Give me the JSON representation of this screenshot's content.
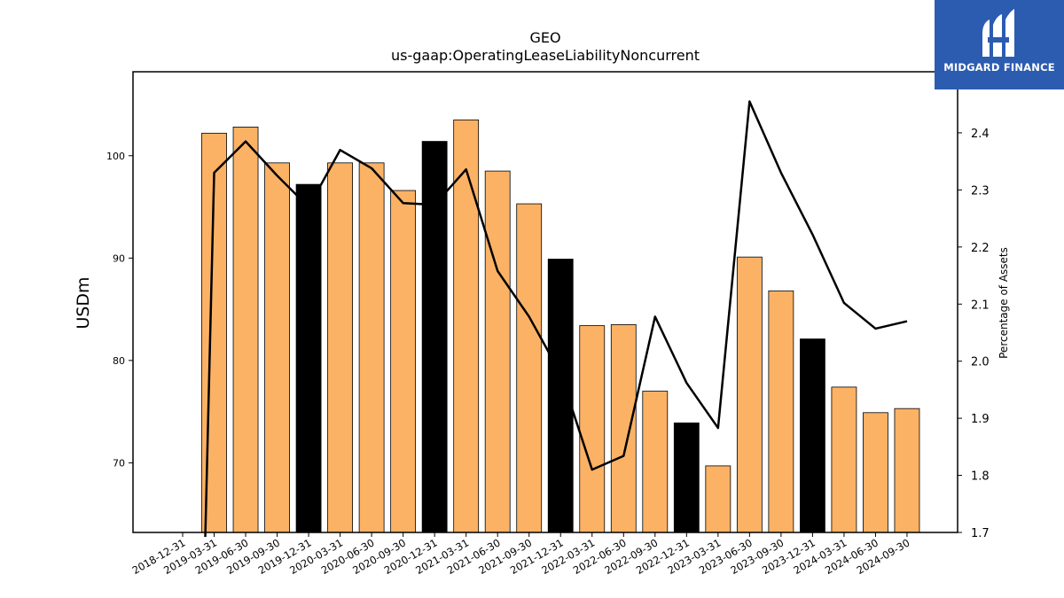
{
  "chart_data": {
    "type": "bar",
    "title": "GEO",
    "subtitle": "us-gaap:OperatingLeaseLiabilityNoncurrent",
    "ylabel": "USDm",
    "y2label": "Percentage of Assets",
    "ylim": [
      63.2,
      108.2
    ],
    "y2lim": [
      1.7,
      2.507
    ],
    "yticks": [
      70,
      80,
      90,
      100
    ],
    "y2ticks": [
      1.7,
      1.8,
      1.9,
      2.0,
      2.1,
      2.2,
      2.3,
      2.4
    ],
    "categories": [
      "2018-12-31",
      "2019-03-31",
      "2019-06-30",
      "2019-09-30",
      "2019-12-31",
      "2020-03-31",
      "2020-06-30",
      "2020-09-30",
      "2020-12-31",
      "2021-03-31",
      "2021-06-30",
      "2021-09-30",
      "2021-12-31",
      "2022-03-31",
      "2022-06-30",
      "2022-09-30",
      "2022-12-31",
      "2023-03-31",
      "2023-06-30",
      "2023-09-30",
      "2023-12-31",
      "2024-03-31",
      "2024-06-30",
      "2024-09-30"
    ],
    "series": [
      {
        "type": "bar",
        "values": [
          null,
          102.2,
          102.8,
          99.3,
          97.2,
          99.3,
          99.3,
          96.6,
          101.4,
          103.5,
          98.5,
          95.3,
          89.9,
          83.4,
          83.5,
          77.0,
          73.9,
          69.7,
          90.1,
          86.8,
          82.1,
          77.4,
          74.9,
          75.3
        ],
        "colors_by_point": [
          "#fbb265",
          "#fbb265",
          "#fbb265",
          "#fbb265",
          "#000000",
          "#fbb265",
          "#fbb265",
          "#fbb265",
          "#000000",
          "#fbb265",
          "#fbb265",
          "#fbb265",
          "#000000",
          "#fbb265",
          "#fbb265",
          "#fbb265",
          "#000000",
          "#fbb265",
          "#fbb265",
          "#fbb265",
          "#000000",
          "#fbb265",
          "#fbb265",
          "#fbb265"
        ]
      },
      {
        "type": "line",
        "axis": "right",
        "color": "#000000",
        "values": [
          null,
          2.33,
          2.385,
          2.325,
          2.27,
          2.37,
          2.338,
          2.277,
          2.274,
          2.336,
          2.158,
          2.078,
          1.978,
          1.81,
          1.834,
          2.078,
          1.962,
          1.883,
          2.455,
          2.33,
          2.222,
          2.102,
          2.057,
          2.07
        ],
        "start_from_below_axis": true
      }
    ],
    "grid": false,
    "legend": "none"
  },
  "logo": {
    "text": "MIDGARD FINANCE",
    "background": "#2c5cb0"
  }
}
